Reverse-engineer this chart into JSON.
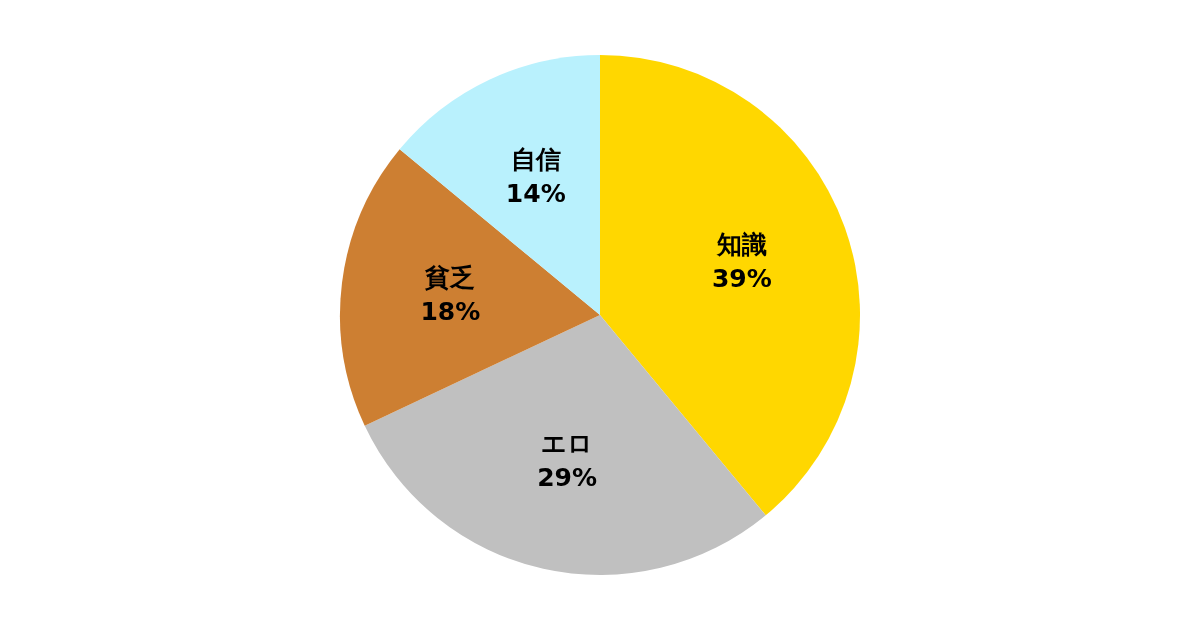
{
  "chart_data": {
    "type": "pie",
    "categories": [
      "知識",
      "エロ",
      "貧乏",
      "自信"
    ],
    "values": [
      39,
      29,
      18,
      14
    ],
    "value_labels": [
      "39%",
      "29%",
      "18%",
      "14%"
    ],
    "colors": [
      "#ffd700",
      "#c0c0c0",
      "#cd7f32",
      "#b9f1fd"
    ],
    "legend": false
  }
}
